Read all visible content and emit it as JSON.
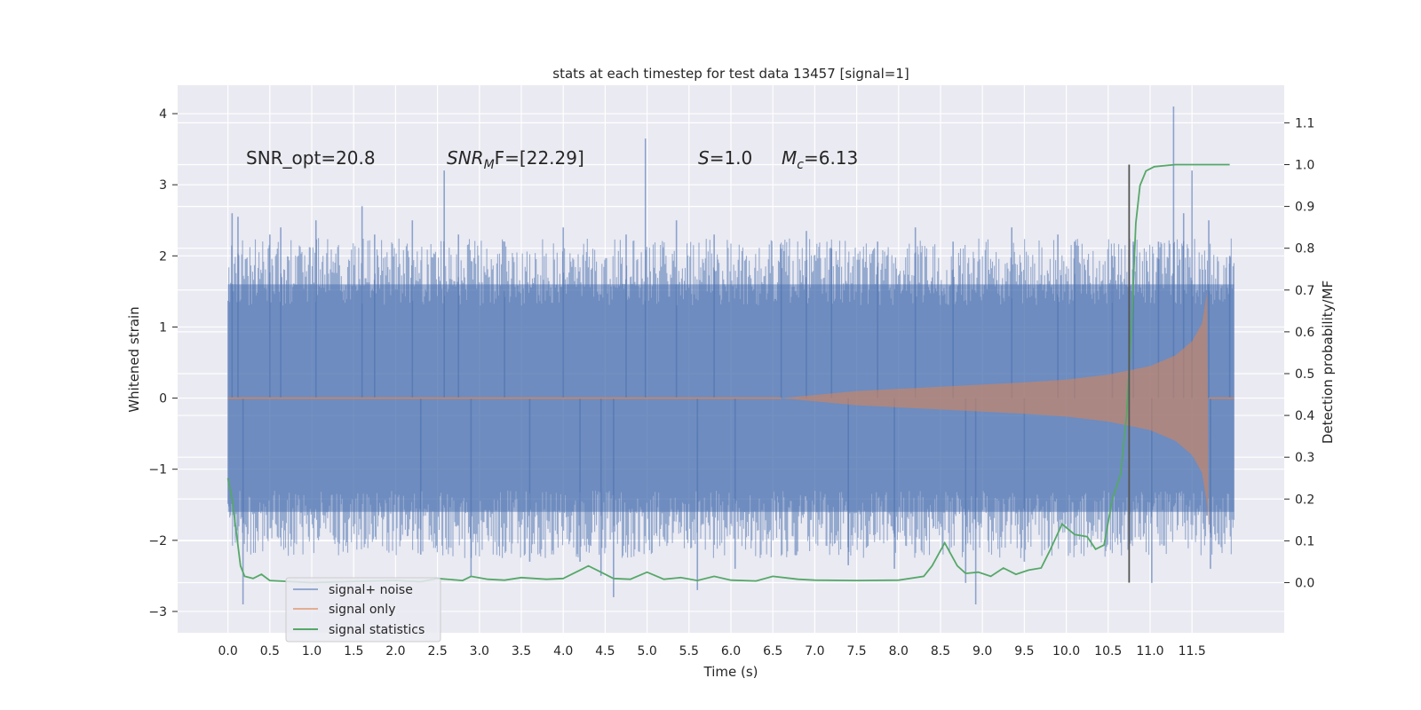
{
  "chart_data": {
    "type": "line",
    "title": "stats at each timestep for test data 13457 [signal=1]",
    "xlabel": "Time (s)",
    "ylabel": "Whitened strain",
    "y2label": "Detection probability/MF",
    "xlim": [
      -0.6,
      12.6
    ],
    "ylim": [
      -3.3,
      4.4
    ],
    "y2lim": [
      -0.12,
      1.19
    ],
    "x_ticks": [
      0.0,
      0.5,
      1.0,
      1.5,
      2.0,
      2.5,
      3.0,
      3.5,
      4.0,
      4.5,
      5.0,
      5.5,
      6.0,
      6.5,
      7.0,
      7.5,
      8.0,
      8.5,
      9.0,
      9.5,
      10.0,
      10.5,
      11.0,
      11.5
    ],
    "x_tick_labels": [
      "0.0",
      "0.5",
      "1.0",
      "1.5",
      "2.0",
      "2.5",
      "3.0",
      "3.5",
      "4.0",
      "4.5",
      "5.0",
      "5.5",
      "6.0",
      "6.5",
      "7.0",
      "7.5",
      "8.0",
      "8.5",
      "9.0",
      "9.5",
      "10.0",
      "10.5",
      "11.0",
      "11.5"
    ],
    "y_ticks": [
      -3,
      -2,
      -1,
      0,
      1,
      2,
      3,
      4
    ],
    "y_tick_labels": [
      "−3",
      "−2",
      "−1",
      "0",
      "1",
      "2",
      "3",
      "4"
    ],
    "y2_ticks": [
      0.0,
      0.1,
      0.2,
      0.3,
      0.4,
      0.5,
      0.6,
      0.7,
      0.8,
      0.9,
      1.0,
      1.1
    ],
    "y2_tick_labels": [
      "0.0",
      "0.1",
      "0.2",
      "0.3",
      "0.4",
      "0.5",
      "0.6",
      "0.7",
      "0.8",
      "0.9",
      "1.0",
      "1.1"
    ],
    "grid": true,
    "legend_position": "lower-left",
    "annotations": {
      "snr_opt": "SNR_opt=20.8",
      "snr_mf_base": "SNR",
      "snr_mf_sub": "M",
      "snr_mf_rest": "F=[22.29]",
      "s_var": "S",
      "s_value": "=1.0",
      "mc_var": "M",
      "mc_sub": "c",
      "mc_value": "=6.13"
    },
    "series": [
      {
        "name": "signal+ noise",
        "color": "#4c72b0",
        "kind": "noise-band",
        "x_range": [
          0.0,
          12.0
        ],
        "envelope_low": -1.6,
        "envelope_high": 1.6,
        "peaks": [
          {
            "x": 0.05,
            "y": 2.6
          },
          {
            "x": 0.12,
            "y": 2.55
          },
          {
            "x": 0.18,
            "y": -2.9
          },
          {
            "x": 0.5,
            "y": 2.3
          },
          {
            "x": 0.63,
            "y": 2.4
          },
          {
            "x": 1.05,
            "y": 2.5
          },
          {
            "x": 1.6,
            "y": 2.7
          },
          {
            "x": 1.75,
            "y": 2.3
          },
          {
            "x": 2.2,
            "y": 2.5
          },
          {
            "x": 2.3,
            "y": -2.2
          },
          {
            "x": 2.58,
            "y": 3.2
          },
          {
            "x": 2.75,
            "y": 2.3
          },
          {
            "x": 2.9,
            "y": -2.5
          },
          {
            "x": 3.3,
            "y": 2.2
          },
          {
            "x": 3.6,
            "y": -2.3
          },
          {
            "x": 4.0,
            "y": 2.4
          },
          {
            "x": 4.2,
            "y": -2.3
          },
          {
            "x": 4.45,
            "y": -2.5
          },
          {
            "x": 4.6,
            "y": -2.8
          },
          {
            "x": 4.75,
            "y": 2.3
          },
          {
            "x": 4.98,
            "y": 3.65
          },
          {
            "x": 5.35,
            "y": 2.5
          },
          {
            "x": 5.6,
            "y": -2.7
          },
          {
            "x": 5.8,
            "y": 2.3
          },
          {
            "x": 6.05,
            "y": -2.4
          },
          {
            "x": 6.6,
            "y": 2.1
          },
          {
            "x": 6.9,
            "y": 2.35
          },
          {
            "x": 7.2,
            "y": 2.1
          },
          {
            "x": 7.4,
            "y": -2.35
          },
          {
            "x": 7.75,
            "y": 2.2
          },
          {
            "x": 7.95,
            "y": -2.4
          },
          {
            "x": 8.2,
            "y": 2.4
          },
          {
            "x": 8.65,
            "y": 2.2
          },
          {
            "x": 8.8,
            "y": -2.6
          },
          {
            "x": 8.92,
            "y": -2.9
          },
          {
            "x": 9.35,
            "y": 2.4
          },
          {
            "x": 9.5,
            "y": -2.3
          },
          {
            "x": 9.9,
            "y": 2.3
          },
          {
            "x": 10.1,
            "y": 2.2
          },
          {
            "x": 10.55,
            "y": 2.0
          },
          {
            "x": 10.8,
            "y": 2.2
          },
          {
            "x": 11.02,
            "y": -2.6
          },
          {
            "x": 11.1,
            "y": 2.2
          },
          {
            "x": 11.28,
            "y": 4.1
          },
          {
            "x": 11.4,
            "y": 2.6
          },
          {
            "x": 11.5,
            "y": 3.2
          },
          {
            "x": 11.7,
            "y": 2.5
          },
          {
            "x": 11.72,
            "y": -2.4
          },
          {
            "x": 11.95,
            "y": 2.0
          }
        ]
      },
      {
        "name": "signal only",
        "color": "#dd8452",
        "kind": "chirp",
        "x_range": [
          0.0,
          12.0
        ],
        "onset": 6.6,
        "merger": 11.7,
        "envelope": [
          {
            "x": 6.6,
            "y": 0.0
          },
          {
            "x": 7.5,
            "y": 0.1
          },
          {
            "x": 8.5,
            "y": 0.16
          },
          {
            "x": 9.5,
            "y": 0.22
          },
          {
            "x": 10.0,
            "y": 0.26
          },
          {
            "x": 10.5,
            "y": 0.33
          },
          {
            "x": 11.0,
            "y": 0.45
          },
          {
            "x": 11.3,
            "y": 0.6
          },
          {
            "x": 11.5,
            "y": 0.8
          },
          {
            "x": 11.62,
            "y": 1.05
          },
          {
            "x": 11.68,
            "y": 1.5
          },
          {
            "x": 11.7,
            "y": -1.9
          }
        ]
      },
      {
        "name": "signal statistics",
        "color": "#55a868",
        "kind": "line",
        "axis": "right",
        "points": [
          {
            "x": 0.0,
            "y": 0.25
          },
          {
            "x": 0.05,
            "y": 0.2
          },
          {
            "x": 0.1,
            "y": 0.12
          },
          {
            "x": 0.15,
            "y": 0.04
          },
          {
            "x": 0.2,
            "y": 0.015
          },
          {
            "x": 0.3,
            "y": 0.01
          },
          {
            "x": 0.4,
            "y": 0.02
          },
          {
            "x": 0.5,
            "y": 0.005
          },
          {
            "x": 1.0,
            "y": 0.0
          },
          {
            "x": 1.5,
            "y": 0.003
          },
          {
            "x": 2.0,
            "y": 0.005
          },
          {
            "x": 2.3,
            "y": 0.002
          },
          {
            "x": 2.5,
            "y": 0.01
          },
          {
            "x": 2.8,
            "y": 0.005
          },
          {
            "x": 2.9,
            "y": 0.015
          },
          {
            "x": 3.1,
            "y": 0.008
          },
          {
            "x": 3.3,
            "y": 0.006
          },
          {
            "x": 3.5,
            "y": 0.012
          },
          {
            "x": 3.8,
            "y": 0.008
          },
          {
            "x": 4.0,
            "y": 0.01
          },
          {
            "x": 4.2,
            "y": 0.03
          },
          {
            "x": 4.3,
            "y": 0.04
          },
          {
            "x": 4.45,
            "y": 0.025
          },
          {
            "x": 4.6,
            "y": 0.01
          },
          {
            "x": 4.8,
            "y": 0.008
          },
          {
            "x": 5.0,
            "y": 0.025
          },
          {
            "x": 5.2,
            "y": 0.008
          },
          {
            "x": 5.4,
            "y": 0.012
          },
          {
            "x": 5.6,
            "y": 0.005
          },
          {
            "x": 5.8,
            "y": 0.015
          },
          {
            "x": 6.0,
            "y": 0.006
          },
          {
            "x": 6.3,
            "y": 0.004
          },
          {
            "x": 6.5,
            "y": 0.015
          },
          {
            "x": 6.8,
            "y": 0.008
          },
          {
            "x": 7.0,
            "y": 0.006
          },
          {
            "x": 7.5,
            "y": 0.005
          },
          {
            "x": 8.0,
            "y": 0.006
          },
          {
            "x": 8.3,
            "y": 0.015
          },
          {
            "x": 8.4,
            "y": 0.04
          },
          {
            "x": 8.55,
            "y": 0.095
          },
          {
            "x": 8.7,
            "y": 0.04
          },
          {
            "x": 8.8,
            "y": 0.022
          },
          {
            "x": 8.95,
            "y": 0.025
          },
          {
            "x": 9.1,
            "y": 0.015
          },
          {
            "x": 9.25,
            "y": 0.035
          },
          {
            "x": 9.4,
            "y": 0.02
          },
          {
            "x": 9.55,
            "y": 0.03
          },
          {
            "x": 9.7,
            "y": 0.035
          },
          {
            "x": 9.8,
            "y": 0.075
          },
          {
            "x": 9.95,
            "y": 0.14
          },
          {
            "x": 10.1,
            "y": 0.115
          },
          {
            "x": 10.25,
            "y": 0.11
          },
          {
            "x": 10.35,
            "y": 0.08
          },
          {
            "x": 10.45,
            "y": 0.09
          },
          {
            "x": 10.55,
            "y": 0.2
          },
          {
            "x": 10.65,
            "y": 0.26
          },
          {
            "x": 10.72,
            "y": 0.4
          },
          {
            "x": 10.78,
            "y": 0.62
          },
          {
            "x": 10.83,
            "y": 0.86
          },
          {
            "x": 10.88,
            "y": 0.95
          },
          {
            "x": 10.95,
            "y": 0.985
          },
          {
            "x": 11.05,
            "y": 0.995
          },
          {
            "x": 11.3,
            "y": 1.0
          },
          {
            "x": 11.95,
            "y": 1.0
          }
        ]
      }
    ],
    "vertical_marker": {
      "x": 10.75,
      "y2_range": [
        0.0,
        1.0
      ],
      "color": "#555555"
    }
  }
}
